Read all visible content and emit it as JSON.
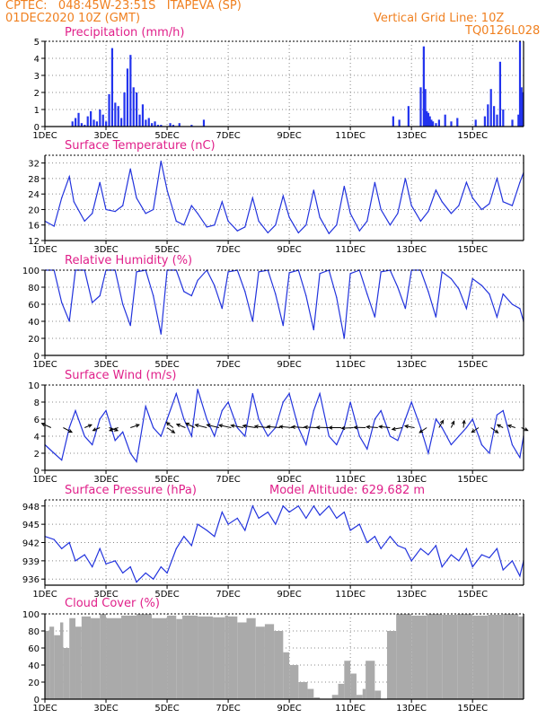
{
  "header": {
    "line1": "CPTEC:   048:45W-23:51S   ITAPEVA (SP)",
    "line2": "01DEC2020 10Z (GMT)",
    "grid_note": "Vertical Grid Line: 10Z",
    "model_code": "TQ0126L028"
  },
  "model_altitude": "Model Altitude: 629.682 m",
  "colors": {
    "header": "#f08020",
    "title": "#e0208a",
    "line": "#2233dd",
    "bar": "#2233ee",
    "cloud": "#aaaaaa",
    "arrow": "#000000"
  },
  "x_axis": {
    "ticks": [
      "1DEC",
      "3DEC",
      "5DEC",
      "7DEC",
      "9DEC",
      "11DEC",
      "13DEC",
      "15DEC"
    ],
    "range_days": [
      0,
      15.67
    ]
  },
  "chart_data": [
    {
      "id": "precip",
      "type": "bar",
      "title": "Precipitation (mm/h)",
      "ylim": [
        0,
        5
      ],
      "yticks": [
        0,
        1,
        2,
        3,
        4,
        5
      ],
      "x_units": "days since 01DEC2020 10Z",
      "x": [
        0.9,
        1.0,
        1.1,
        1.2,
        1.3,
        1.4,
        1.5,
        1.6,
        1.7,
        1.8,
        1.9,
        2.0,
        2.1,
        2.2,
        2.3,
        2.4,
        2.5,
        2.6,
        2.7,
        2.8,
        2.9,
        3.0,
        3.1,
        3.2,
        3.3,
        3.4,
        3.5,
        3.6,
        3.7,
        3.8,
        4.1,
        4.2,
        4.4,
        4.8,
        5.2,
        11.4,
        11.6,
        11.9,
        12.3,
        12.4,
        12.45,
        12.5,
        12.55,
        12.6,
        12.65,
        12.7,
        12.8,
        12.9,
        13.1,
        13.3,
        13.5,
        14.1,
        14.4,
        14.5,
        14.6,
        14.7,
        14.8,
        14.9,
        15.0,
        15.3,
        15.5,
        15.55,
        15.6,
        15.65
      ],
      "values": [
        0.3,
        0.5,
        0.8,
        0.2,
        0.1,
        0.6,
        0.9,
        0.4,
        0.3,
        1.0,
        0.7,
        0.3,
        1.9,
        4.6,
        1.4,
        1.2,
        0.5,
        2.0,
        3.4,
        4.2,
        2.3,
        2.0,
        0.7,
        1.3,
        0.4,
        0.5,
        0.2,
        0.3,
        0.1,
        0.1,
        0.2,
        0.1,
        0.2,
        0.1,
        0.4,
        0.6,
        0.4,
        1.2,
        2.3,
        4.7,
        2.2,
        0.9,
        0.8,
        0.6,
        0.4,
        0.3,
        0.2,
        0.4,
        0.7,
        0.3,
        0.5,
        0.4,
        0.6,
        1.3,
        2.2,
        1.2,
        0.7,
        3.8,
        1.0,
        0.4,
        0.7,
        5.0,
        2.3,
        2.0
      ]
    },
    {
      "id": "temp",
      "type": "line",
      "title": "Surface Temperature (nC)",
      "ylim": [
        12,
        34
      ],
      "yticks": [
        12,
        16,
        20,
        24,
        28,
        32
      ],
      "x_units": "days since 01DEC2020 10Z",
      "x": [
        0,
        0.3,
        0.55,
        0.8,
        0.95,
        1.3,
        1.55,
        1.8,
        2.0,
        2.3,
        2.55,
        2.8,
        3.0,
        3.3,
        3.55,
        3.8,
        4.0,
        4.3,
        4.55,
        4.8,
        5.0,
        5.3,
        5.55,
        5.8,
        6.0,
        6.3,
        6.55,
        6.8,
        7.0,
        7.3,
        7.55,
        7.8,
        8.0,
        8.3,
        8.55,
        8.8,
        9.0,
        9.3,
        9.55,
        9.8,
        10.0,
        10.3,
        10.55,
        10.8,
        11.0,
        11.3,
        11.55,
        11.8,
        12.0,
        12.3,
        12.55,
        12.8,
        13.0,
        13.3,
        13.55,
        13.8,
        14.0,
        14.3,
        14.55,
        14.8,
        15.0,
        15.3,
        15.55,
        15.67
      ],
      "values": [
        17,
        15.7,
        23,
        28.5,
        22,
        17,
        19,
        27,
        20,
        19.5,
        21,
        30.5,
        23,
        19,
        20,
        32.5,
        25,
        17,
        16,
        21,
        19,
        15.5,
        16,
        22,
        17,
        14.5,
        15.5,
        23,
        17,
        14,
        16,
        23.5,
        18,
        14,
        16,
        25,
        18,
        13.8,
        16,
        26,
        19,
        14.5,
        17,
        27,
        20,
        16,
        19,
        28,
        21,
        17,
        19.5,
        25,
        22,
        19,
        21,
        27,
        23,
        20,
        21.5,
        28,
        22,
        21,
        27,
        29.5
      ]
    },
    {
      "id": "rh",
      "type": "line",
      "title": "Relative Humidity (%)",
      "ylim": [
        0,
        100
      ],
      "yticks": [
        0,
        20,
        40,
        60,
        80,
        100
      ],
      "x_units": "days since 01DEC2020 10Z",
      "x": [
        0,
        0.3,
        0.55,
        0.8,
        1.0,
        1.3,
        1.55,
        1.8,
        2.0,
        2.3,
        2.55,
        2.8,
        3.0,
        3.3,
        3.55,
        3.8,
        4.0,
        4.3,
        4.55,
        4.8,
        5.0,
        5.3,
        5.55,
        5.8,
        6.0,
        6.3,
        6.55,
        6.8,
        7.0,
        7.3,
        7.55,
        7.8,
        8.0,
        8.3,
        8.55,
        8.8,
        9.0,
        9.3,
        9.55,
        9.8,
        10.0,
        10.3,
        10.55,
        10.8,
        11.0,
        11.3,
        11.55,
        11.8,
        12.0,
        12.3,
        12.55,
        12.8,
        13.0,
        13.3,
        13.55,
        13.8,
        14.0,
        14.3,
        14.55,
        14.8,
        15.0,
        15.3,
        15.55,
        15.67
      ],
      "values": [
        100,
        100,
        62,
        40,
        100,
        100,
        62,
        70,
        100,
        100,
        60,
        35,
        98,
        100,
        70,
        25,
        100,
        100,
        75,
        70,
        88,
        100,
        82,
        55,
        98,
        100,
        75,
        40,
        98,
        100,
        72,
        35,
        97,
        100,
        70,
        30,
        96,
        100,
        68,
        20,
        96,
        100,
        72,
        45,
        98,
        100,
        80,
        55,
        100,
        100,
        75,
        45,
        98,
        90,
        78,
        55,
        90,
        82,
        72,
        45,
        72,
        60,
        55,
        40
      ]
    },
    {
      "id": "wind",
      "type": "line",
      "title": "Surface Wind (m/s)",
      "ylim": [
        0,
        10
      ],
      "yticks": [
        0,
        2,
        4,
        6,
        8,
        10
      ],
      "x_units": "days since 01DEC2020 10Z",
      "x": [
        0,
        0.3,
        0.55,
        0.8,
        1.0,
        1.3,
        1.55,
        1.8,
        2.0,
        2.3,
        2.55,
        2.8,
        3.0,
        3.3,
        3.55,
        3.8,
        4.0,
        4.3,
        4.55,
        4.8,
        5.0,
        5.3,
        5.55,
        5.8,
        6.0,
        6.3,
        6.55,
        6.8,
        7.0,
        7.3,
        7.55,
        7.8,
        8.0,
        8.3,
        8.55,
        8.8,
        9.0,
        9.3,
        9.55,
        9.8,
        10.0,
        10.3,
        10.55,
        10.8,
        11.0,
        11.3,
        11.55,
        11.8,
        12.0,
        12.3,
        12.55,
        12.8,
        13.0,
        13.3,
        13.55,
        13.8,
        14.0,
        14.3,
        14.55,
        14.8,
        15.0,
        15.3,
        15.55,
        15.67
      ],
      "values": [
        3,
        2,
        1.2,
        5,
        7,
        4,
        3,
        6,
        7,
        3.5,
        4.5,
        2,
        1,
        7.5,
        5,
        4,
        6,
        9,
        6,
        4,
        9.5,
        6,
        4,
        7,
        8,
        5,
        4,
        9,
        6,
        4,
        5,
        8,
        9,
        5,
        3,
        7,
        9,
        4,
        3,
        5,
        8,
        4,
        2.5,
        6,
        7,
        4,
        3.5,
        6,
        8,
        5,
        2,
        6,
        5,
        3,
        4,
        5,
        6,
        3,
        2,
        6.5,
        7,
        3,
        1.5,
        4
      ],
      "arrows_m_s": [
        {
          "d": 0.2,
          "u": -3.2,
          "v": 1.5
        },
        {
          "d": 0.6,
          "u": 3,
          "v": -1.6
        },
        {
          "d": 1.3,
          "u": 2.4,
          "v": 1
        },
        {
          "d": 1.8,
          "u": -2.4,
          "v": -1
        },
        {
          "d": 2.1,
          "u": 3,
          "v": -1
        },
        {
          "d": 2.4,
          "u": -3,
          "v": -1
        },
        {
          "d": 2.8,
          "u": 3,
          "v": 1
        },
        {
          "d": 4.0,
          "u": 2.6,
          "v": -1.8
        },
        {
          "d": 4.2,
          "u": -2.3,
          "v": 1.8
        },
        {
          "d": 4.6,
          "u": -3,
          "v": 1.2
        },
        {
          "d": 4.9,
          "u": -3,
          "v": 1.6
        },
        {
          "d": 5.3,
          "u": -4,
          "v": 1
        },
        {
          "d": 5.7,
          "u": -4.2,
          "v": 1
        },
        {
          "d": 6.1,
          "u": -4.2,
          "v": 0.9
        },
        {
          "d": 6.5,
          "u": -4.3,
          "v": 0.8
        },
        {
          "d": 6.9,
          "u": -4.4,
          "v": 0.7
        },
        {
          "d": 7.3,
          "u": -4.5,
          "v": 0.5
        },
        {
          "d": 7.7,
          "u": -4.5,
          "v": 0.4
        },
        {
          "d": 8.1,
          "u": -4.4,
          "v": 0.4
        },
        {
          "d": 8.5,
          "u": -4.4,
          "v": 0.3
        },
        {
          "d": 8.9,
          "u": -4.3,
          "v": 0.2
        },
        {
          "d": 9.3,
          "u": -4.3,
          "v": 0.1
        },
        {
          "d": 9.7,
          "u": -4.2,
          "v": 0
        },
        {
          "d": 10.1,
          "u": -4.1,
          "v": -0.2
        },
        {
          "d": 10.5,
          "u": -4,
          "v": 0.1
        },
        {
          "d": 10.9,
          "u": -3.9,
          "v": 0.3
        },
        {
          "d": 11.3,
          "u": -3.8,
          "v": 0.4
        },
        {
          "d": 11.7,
          "u": -3.5,
          "v": -0.6
        },
        {
          "d": 12.1,
          "u": -3.3,
          "v": 0.6
        },
        {
          "d": 12.5,
          "u": -2.5,
          "v": -1.7
        },
        {
          "d": 12.9,
          "u": 1.5,
          "v": 2.5
        },
        {
          "d": 13.3,
          "u": 1,
          "v": 2.2
        },
        {
          "d": 13.7,
          "u": 0.3,
          "v": 2.5
        },
        {
          "d": 14.2,
          "u": -2.4,
          "v": -1.6
        },
        {
          "d": 14.6,
          "u": 2.5,
          "v": -1.8
        },
        {
          "d": 15.0,
          "u": -2,
          "v": 1
        },
        {
          "d": 15.4,
          "u": -2.5,
          "v": 0.8
        },
        {
          "d": 15.6,
          "u": 2.2,
          "v": -1
        }
      ]
    },
    {
      "id": "pres",
      "type": "line",
      "title": "Surface Pressure (hPa)",
      "ylim": [
        935,
        949
      ],
      "yticks": [
        936,
        939,
        942,
        945,
        948
      ],
      "x_units": "days since 01DEC2020 10Z",
      "x": [
        0,
        0.3,
        0.55,
        0.8,
        1.0,
        1.3,
        1.55,
        1.8,
        2.0,
        2.3,
        2.55,
        2.8,
        3.0,
        3.3,
        3.55,
        3.8,
        4.0,
        4.3,
        4.55,
        4.8,
        5.0,
        5.3,
        5.55,
        5.8,
        6.0,
        6.3,
        6.55,
        6.8,
        7.0,
        7.3,
        7.55,
        7.8,
        8.0,
        8.3,
        8.55,
        8.8,
        9.0,
        9.3,
        9.55,
        9.8,
        10.0,
        10.3,
        10.55,
        10.8,
        11.0,
        11.3,
        11.55,
        11.8,
        12.0,
        12.3,
        12.55,
        12.8,
        13.0,
        13.3,
        13.55,
        13.8,
        14.0,
        14.3,
        14.55,
        14.8,
        15.0,
        15.3,
        15.55,
        15.67
      ],
      "values": [
        943,
        942.5,
        941,
        942,
        939,
        940,
        938,
        941,
        938.5,
        939,
        937,
        938,
        935.5,
        937,
        936,
        938,
        937,
        941,
        943,
        941.5,
        945,
        944,
        943,
        947,
        945,
        946,
        944,
        948,
        946,
        947,
        945,
        948,
        947,
        948,
        946,
        948,
        946.5,
        948,
        946,
        947,
        944,
        945,
        942,
        943,
        941,
        943,
        941.5,
        941,
        939,
        941,
        940,
        941.5,
        938,
        940,
        939,
        941,
        938,
        940,
        939.5,
        941,
        937.5,
        939,
        936.5,
        939
      ]
    },
    {
      "id": "cloud",
      "type": "area",
      "title": "Cloud Cover (%)",
      "ylim": [
        0,
        100
      ],
      "yticks": [
        0,
        20,
        40,
        60,
        80,
        100
      ],
      "x_units": "days since 01DEC2020 10Z",
      "x": [
        0,
        0.15,
        0.3,
        0.5,
        0.6,
        0.8,
        1.0,
        1.2,
        1.5,
        1.8,
        2.0,
        2.5,
        3.0,
        3.5,
        4.0,
        4.3,
        4.5,
        5.0,
        5.5,
        5.9,
        6.0,
        6.3,
        6.6,
        6.9,
        7.2,
        7.5,
        7.8,
        8.0,
        8.3,
        8.6,
        8.8,
        9.0,
        9.2,
        9.4,
        9.6,
        9.8,
        10.0,
        10.2,
        10.4,
        10.5,
        10.8,
        11.0,
        11.2,
        11.5,
        12.0,
        12.5,
        13.0,
        13.5,
        14.0,
        14.5,
        15.0,
        15.5,
        15.67
      ],
      "values": [
        80,
        85,
        75,
        90,
        60,
        95,
        85,
        97,
        95,
        100,
        95,
        98,
        100,
        95,
        98,
        94,
        98,
        97,
        96,
        98,
        97,
        90,
        95,
        85,
        88,
        80,
        55,
        40,
        20,
        12,
        2,
        0,
        0,
        5,
        18,
        45,
        30,
        5,
        12,
        45,
        10,
        0,
        80,
        100,
        98,
        100,
        99,
        100,
        98,
        99,
        100,
        97,
        99
      ]
    }
  ],
  "panel_titles_extra": {
    "pres_right": "Model Altitude: 629.682 m"
  }
}
